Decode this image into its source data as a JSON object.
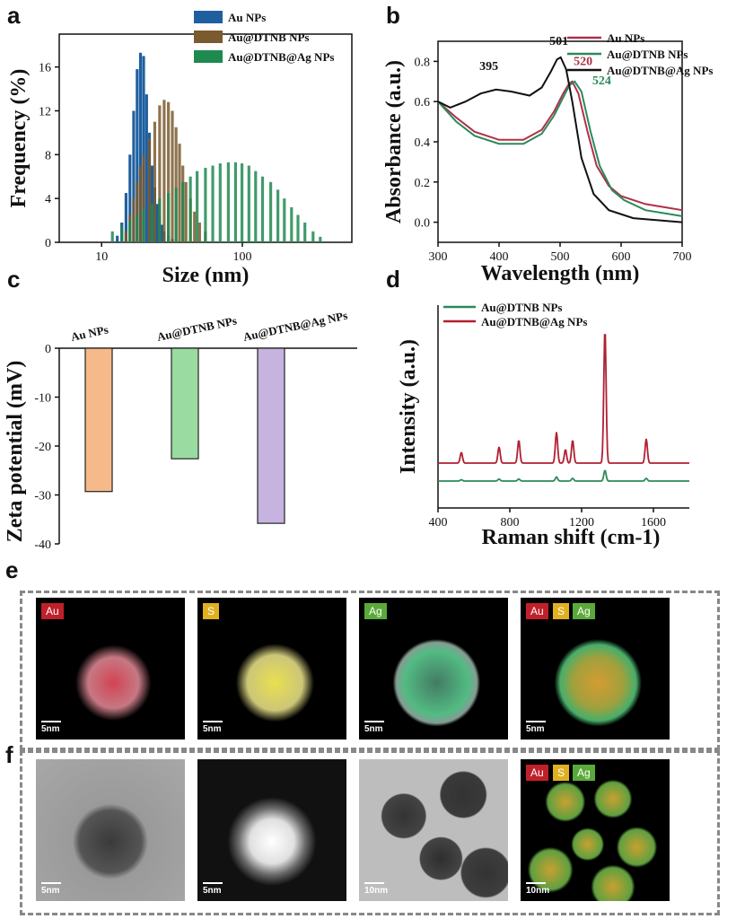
{
  "panel_labels": {
    "a": "a",
    "b": "b",
    "c": "c",
    "d": "d",
    "e": "e",
    "f": "f"
  },
  "colors": {
    "au": "#1f5fa0",
    "dtnb": "#7a5a2f",
    "ag": "#1e8a50",
    "uv_au": "#b0304a",
    "uv_dtnb": "#2a8a5a",
    "uv_ag": "#111111",
    "zeta_au": "#f5b98a",
    "zeta_dtnb": "#99dba0",
    "zeta_ag": "#c6b3e0",
    "raman_dtnb": "#2a8a5a",
    "raman_ag": "#b02030"
  },
  "chart_data": [
    {
      "id": "a",
      "type": "bar",
      "xlabel": "Size (nm)",
      "ylabel": "Frequency (%)",
      "xscale": "log",
      "xlim": [
        5,
        600
      ],
      "ylim": [
        0,
        19
      ],
      "xticks": [
        10,
        100
      ],
      "yticks": [
        0,
        4,
        8,
        12,
        16
      ],
      "legend": [
        "Au NPs",
        "Au@DTNB NPs",
        "Au@DTNB@Ag NPs"
      ],
      "series": [
        {
          "name": "Au NPs",
          "x": [
            13,
            14,
            15,
            16,
            17,
            18,
            19,
            20,
            21,
            22,
            23,
            24,
            25,
            26,
            27,
            28,
            30,
            32,
            34
          ],
          "values": [
            0.6,
            1.8,
            4.5,
            8,
            12,
            15.8,
            17.3,
            17,
            13.5,
            10,
            7,
            5,
            3.5,
            2.4,
            1.6,
            1,
            0.6,
            0.3,
            0.1
          ]
        },
        {
          "name": "Au@DTNB NPs",
          "x": [
            15,
            16,
            17,
            18,
            19,
            20,
            22,
            24,
            26,
            28,
            30,
            32,
            34,
            36,
            38,
            40,
            43,
            46,
            50,
            55
          ],
          "values": [
            1,
            2.5,
            4,
            5.5,
            7,
            8,
            9.5,
            11,
            12.5,
            13,
            12.8,
            12,
            10.5,
            9,
            7,
            5.5,
            4,
            2.8,
            1.8,
            1
          ]
        },
        {
          "name": "Au@DTNB@Ag NPs",
          "x": [
            12,
            14,
            16,
            18,
            20,
            23,
            26,
            30,
            34,
            38,
            43,
            48,
            55,
            62,
            70,
            80,
            90,
            100,
            112,
            125,
            140,
            160,
            180,
            200,
            225,
            250,
            280,
            320,
            360
          ],
          "values": [
            1,
            1.5,
            2,
            2.5,
            3,
            3.5,
            4,
            4.5,
            5,
            5.5,
            6,
            6.5,
            6.8,
            7,
            7.2,
            7.3,
            7.3,
            7.2,
            7,
            6.5,
            6,
            5.5,
            4.8,
            4,
            3.2,
            2.5,
            1.8,
            1,
            0.5
          ]
        }
      ]
    },
    {
      "id": "b",
      "type": "line",
      "xlabel": "Wavelength (nm)",
      "ylabel": "Absorbance (a.u.)",
      "xlim": [
        300,
        700
      ],
      "ylim": [
        -0.1,
        0.9
      ],
      "xticks": [
        300,
        400,
        500,
        600,
        700
      ],
      "yticks": [
        0.0,
        0.2,
        0.4,
        0.6,
        0.8
      ],
      "annotations": [
        {
          "text": "395",
          "x": 395,
          "y": 0.66
        },
        {
          "text": "501",
          "x": 501,
          "y": 0.82
        },
        {
          "text": "520",
          "x": 520,
          "y": 0.71
        },
        {
          "text": "524",
          "x": 524,
          "y": 0.65
        }
      ],
      "series": [
        {
          "name": "Au NPs",
          "x": [
            300,
            330,
            360,
            400,
            440,
            470,
            490,
            505,
            515,
            520,
            530,
            545,
            560,
            580,
            600,
            640,
            680,
            700
          ],
          "y": [
            0.6,
            0.52,
            0.45,
            0.41,
            0.41,
            0.46,
            0.55,
            0.64,
            0.69,
            0.7,
            0.64,
            0.45,
            0.28,
            0.18,
            0.13,
            0.09,
            0.07,
            0.06
          ]
        },
        {
          "name": "Au@DTNB NPs",
          "x": [
            300,
            330,
            360,
            400,
            440,
            470,
            490,
            505,
            515,
            524,
            535,
            550,
            565,
            585,
            605,
            640,
            680,
            700
          ],
          "y": [
            0.6,
            0.5,
            0.43,
            0.39,
            0.39,
            0.44,
            0.53,
            0.62,
            0.68,
            0.7,
            0.65,
            0.45,
            0.28,
            0.16,
            0.11,
            0.06,
            0.04,
            0.03
          ]
        },
        {
          "name": "Au@DTNB@Ag NPs",
          "x": [
            300,
            320,
            345,
            370,
            395,
            420,
            450,
            470,
            485,
            495,
            501,
            510,
            520,
            535,
            555,
            580,
            620,
            660,
            700
          ],
          "y": [
            0.6,
            0.57,
            0.6,
            0.64,
            0.66,
            0.65,
            0.63,
            0.67,
            0.75,
            0.81,
            0.82,
            0.76,
            0.6,
            0.32,
            0.14,
            0.06,
            0.02,
            0.01,
            0.0
          ]
        }
      ]
    },
    {
      "id": "c",
      "type": "bar",
      "ylabel": "Zeta potential (mV)",
      "ylim": [
        -40,
        0
      ],
      "yticks": [
        0,
        -10,
        -20,
        -30,
        -40
      ],
      "categories": [
        "Au NPs",
        "Au@DTNB NPs",
        "Au@DTNB@Ag NPs"
      ],
      "values": [
        -29.3,
        -22.6,
        -35.8
      ]
    },
    {
      "id": "d",
      "type": "line",
      "xlabel": "Raman shift (cm-1)",
      "ylabel": "Intensity (a.u.)",
      "xlim": [
        400,
        1800
      ],
      "xticks": [
        400,
        800,
        1200,
        1600
      ],
      "series": [
        {
          "name": "Au@DTNB NPs",
          "peaks": [
            [
              530,
              0.01
            ],
            [
              740,
              0.015
            ],
            [
              850,
              0.015
            ],
            [
              1060,
              0.03
            ],
            [
              1150,
              0.02
            ],
            [
              1330,
              0.08
            ],
            [
              1560,
              0.02
            ]
          ],
          "baseline": 0.0
        },
        {
          "name": "Au@DTNB@Ag NPs",
          "peaks": [
            [
              530,
              0.08
            ],
            [
              740,
              0.12
            ],
            [
              850,
              0.17
            ],
            [
              1060,
              0.23
            ],
            [
              1110,
              0.1
            ],
            [
              1150,
              0.17
            ],
            [
              1330,
              1.0
            ],
            [
              1560,
              0.18
            ]
          ],
          "baseline": 0.12
        }
      ]
    }
  ],
  "panel_e": {
    "tiles": [
      {
        "badges": [
          {
            "text": "Au",
            "color": "#c0202a"
          }
        ],
        "scale": "5nm"
      },
      {
        "badges": [
          {
            "text": "S",
            "color": "#e0b020"
          }
        ],
        "scale": "5nm"
      },
      {
        "badges": [
          {
            "text": "Ag",
            "color": "#5aaa3a"
          }
        ],
        "scale": "5nm"
      },
      {
        "badges": [
          {
            "text": "Au",
            "color": "#c0202a"
          },
          {
            "text": "S",
            "color": "#e0b020"
          },
          {
            "text": "Ag",
            "color": "#5aaa3a"
          }
        ],
        "scale": "5nm"
      }
    ]
  },
  "panel_f": {
    "tiles": [
      {
        "scale": "5nm"
      },
      {
        "scale": "5nm"
      },
      {
        "scale": "10nm"
      },
      {
        "badges": [
          {
            "text": "Au",
            "color": "#c0202a"
          },
          {
            "text": "S",
            "color": "#e0b020"
          },
          {
            "text": "Ag",
            "color": "#5aaa3a"
          }
        ],
        "scale": "10nm"
      }
    ]
  }
}
